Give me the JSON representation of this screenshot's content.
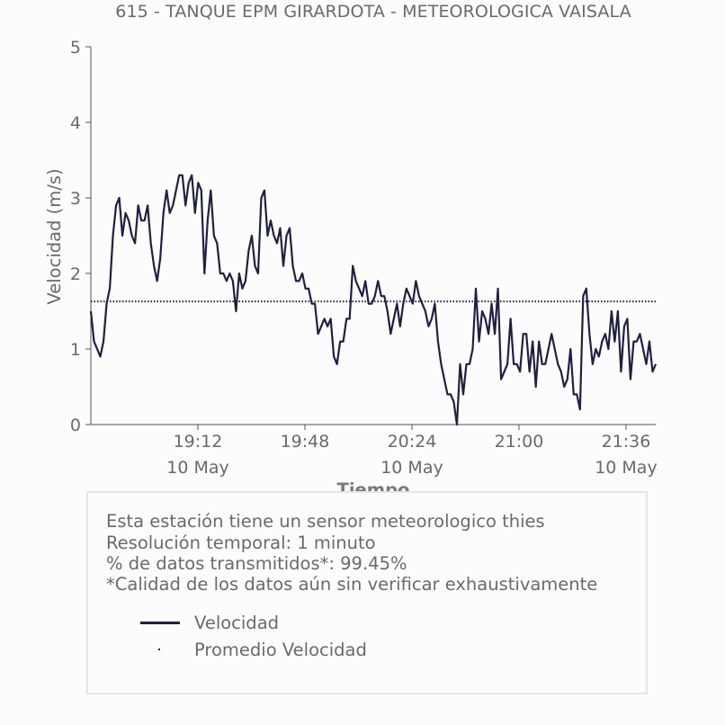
{
  "chart_data": {
    "type": "line",
    "title": "615 - TANQUE EPM GIRARDOTA - METEOROLOGICA VAISALA",
    "xlabel": "Tiempo",
    "ylabel": "Velocidad (m/s)",
    "ylim": [
      0,
      5
    ],
    "yticks": [
      "0",
      "1",
      "2",
      "3",
      "4",
      "5"
    ],
    "x_start": "18:36",
    "x_end": "21:46",
    "xticks": [
      {
        "time": "19:12",
        "label": "19:12",
        "date": "10 May"
      },
      {
        "time": "19:48",
        "label": "19:48",
        "date": ""
      },
      {
        "time": "20:24",
        "label": "20:24",
        "date": "10 May"
      },
      {
        "time": "21:00",
        "label": "21:00",
        "date": ""
      },
      {
        "time": "21:36",
        "label": "21:36",
        "date": "10 May"
      }
    ],
    "grid": false,
    "series": [
      {
        "name": "Velocidad",
        "color": "#1f2041",
        "style": "solid",
        "values": [
          1.5,
          1.1,
          1.0,
          0.9,
          1.1,
          1.6,
          1.8,
          2.5,
          2.9,
          3.0,
          2.5,
          2.8,
          2.7,
          2.5,
          2.4,
          2.9,
          2.7,
          2.7,
          2.9,
          2.4,
          2.1,
          1.9,
          2.2,
          2.8,
          3.1,
          2.8,
          2.9,
          3.1,
          3.3,
          3.3,
          2.9,
          3.2,
          3.3,
          2.8,
          3.2,
          3.1,
          2.0,
          2.7,
          3.1,
          2.5,
          2.4,
          2.0,
          2.0,
          1.9,
          2.0,
          1.9,
          1.5,
          2.0,
          1.8,
          1.9,
          2.3,
          2.5,
          2.1,
          2.0,
          3.0,
          3.1,
          2.5,
          2.7,
          2.5,
          2.4,
          2.6,
          2.1,
          2.5,
          2.6,
          2.1,
          1.9,
          1.9,
          2.0,
          1.8,
          1.8,
          1.6,
          1.6,
          1.2,
          1.3,
          1.4,
          1.3,
          1.4,
          0.9,
          0.8,
          1.1,
          1.1,
          1.4,
          1.4,
          2.1,
          1.9,
          1.8,
          1.7,
          1.9,
          1.6,
          1.6,
          1.7,
          1.9,
          1.7,
          1.7,
          1.5,
          1.2,
          1.4,
          1.6,
          1.3,
          1.6,
          1.8,
          1.7,
          1.6,
          1.9,
          1.7,
          1.6,
          1.5,
          1.3,
          1.4,
          1.6,
          1.1,
          0.8,
          0.6,
          0.4,
          0.4,
          0.3,
          0.0,
          0.8,
          0.4,
          0.8,
          0.8,
          1.0,
          1.8,
          1.1,
          1.5,
          1.4,
          1.2,
          1.6,
          1.2,
          1.8,
          0.6,
          0.7,
          0.8,
          1.4,
          0.8,
          0.8,
          0.7,
          1.2,
          1.2,
          0.7,
          1.1,
          0.5,
          1.1,
          0.8,
          0.8,
          1.0,
          1.2,
          1.0,
          0.8,
          0.7,
          0.5,
          0.6,
          1.0,
          0.4,
          0.4,
          0.2,
          1.7,
          1.8,
          1.2,
          0.8,
          1.0,
          0.9,
          1.1,
          1.2,
          1.0,
          1.5,
          1.1,
          1.5,
          0.7,
          1.3,
          1.4,
          0.6,
          1.1,
          1.1,
          1.2,
          1.0,
          0.8,
          1.1,
          0.7,
          0.8
        ]
      },
      {
        "name": "Promedio Velocidad",
        "color": "#1f2041",
        "style": "dotted",
        "values": [
          1.63
        ]
      }
    ]
  },
  "info": {
    "line1": "Esta estación tiene un sensor meteorologico thies",
    "line2": "Resolución temporal: 1 minuto",
    "line3": "% de datos transmitidos*: 99.45%",
    "line4": "*Calidad de los datos aún sin verificar exhaustivamente"
  },
  "legend": [
    {
      "label": "Velocidad"
    },
    {
      "label": "Promedio Velocidad"
    }
  ]
}
